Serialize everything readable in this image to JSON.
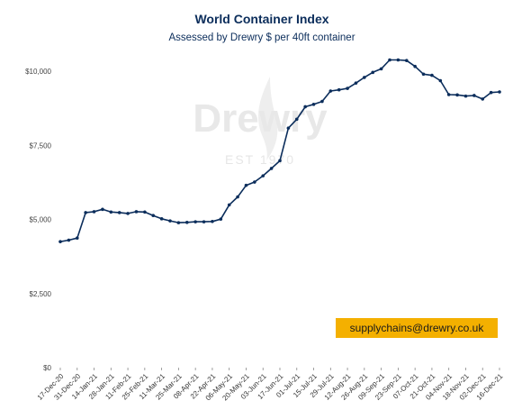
{
  "chart_data": {
    "type": "line",
    "title": "World Container Index",
    "subtitle": "Assessed by Drewry  $ per 40ft container",
    "ylim": [
      0,
      10000
    ],
    "y_ticks": [
      0,
      2500,
      5000,
      7500,
      10000
    ],
    "y_tick_labels": [
      "$0",
      "$2,500",
      "$5,000",
      "$7,500",
      "$10,000"
    ],
    "x_tick_labels": [
      "17-Dec-20",
      "31-Dec-20",
      "14-Jan-21",
      "28-Jan-21",
      "11-Feb-21",
      "25-Feb-21",
      "11-Mar-21",
      "25-Mar-21",
      "08-Apr-21",
      "22-Apr-21",
      "06-May-21",
      "20-May-21",
      "03-Jun-21",
      "17-Jun-21",
      "01-Jul-21",
      "15-Jul-21",
      "29-Jul-21",
      "12-Aug-21",
      "26-Aug-21",
      "09-Sep-21",
      "23-Sep-21",
      "07-Oct-21",
      "21-Oct-21",
      "04-Nov-21",
      "18-Nov-21",
      "02-Dec-21",
      "16-Dec-21"
    ],
    "line_color": "#0b2d5b",
    "grid": false,
    "legend": "none",
    "series": [
      {
        "values": [
          4250,
          4300,
          4370,
          5230,
          5260,
          5340,
          5250,
          5230,
          5200,
          5260,
          5250,
          5130,
          5020,
          4950,
          4890,
          4900,
          4920,
          4920,
          4930,
          5010,
          5490,
          5760,
          6150,
          6260,
          6470,
          6720,
          6980,
          8080,
          8380,
          8800,
          8880,
          8980,
          9330,
          9370,
          9420,
          9600,
          9790,
          9960,
          10080,
          10380,
          10380,
          10360,
          10160,
          9900,
          9860,
          9680,
          9210,
          9200,
          9160,
          9180,
          9060,
          9280,
          9300
        ]
      }
    ]
  },
  "watermark": {
    "brand": "Drewry",
    "est": "EST 1970"
  },
  "contact": {
    "email": "supplychains@drewry.co.uk"
  },
  "colors": {
    "title": "#0b2d5b",
    "email_box": "#f4b000"
  }
}
